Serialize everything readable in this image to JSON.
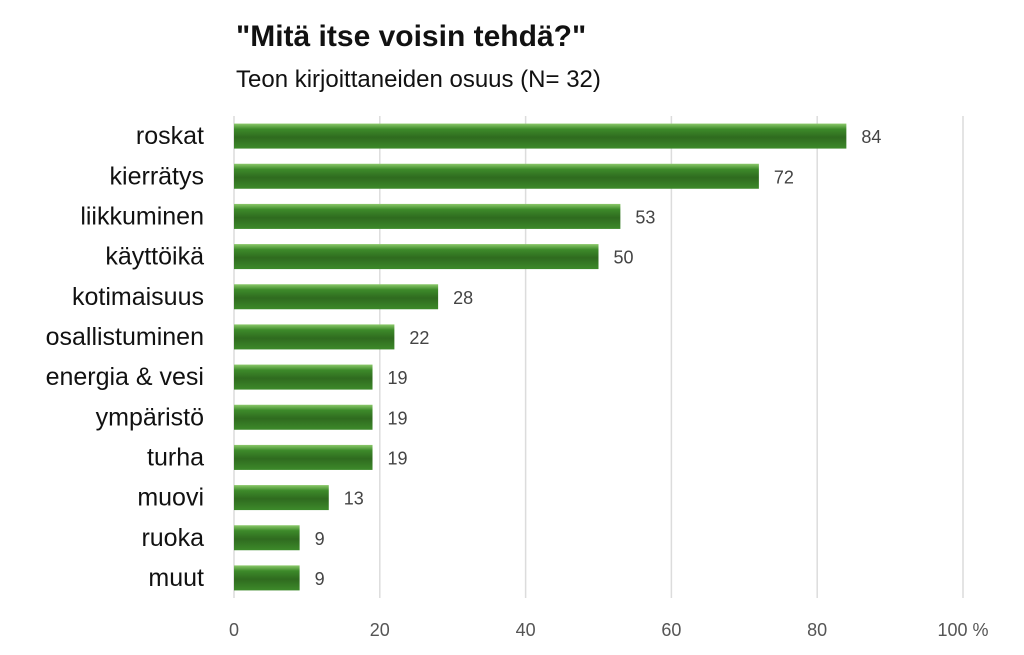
{
  "chart_data": {
    "type": "bar",
    "orientation": "horizontal",
    "title": "\"Mitä itse voisin tehdä?\"",
    "subtitle": "Teon kirjoittaneiden osuus (N= 32)",
    "categories": [
      "roskat",
      "kierrätys",
      "liikkuminen",
      "käyttöikä",
      "kotimaisuus",
      "osallistuminen",
      "energia & vesi",
      "ympäristö",
      "turha",
      "muovi",
      "ruoka",
      "muut"
    ],
    "values": [
      84,
      72,
      53,
      50,
      28,
      22,
      19,
      19,
      19,
      13,
      9,
      9
    ],
    "xlim": [
      0,
      100
    ],
    "xticks": [
      "0",
      "20",
      "40",
      "60",
      "80",
      "100 %"
    ],
    "grid": true,
    "legend": "none",
    "colors": {
      "bar_dark": "#2f6b1f",
      "bar_mid": "#3d8a2a",
      "bar_light": "#8cc96b"
    }
  }
}
